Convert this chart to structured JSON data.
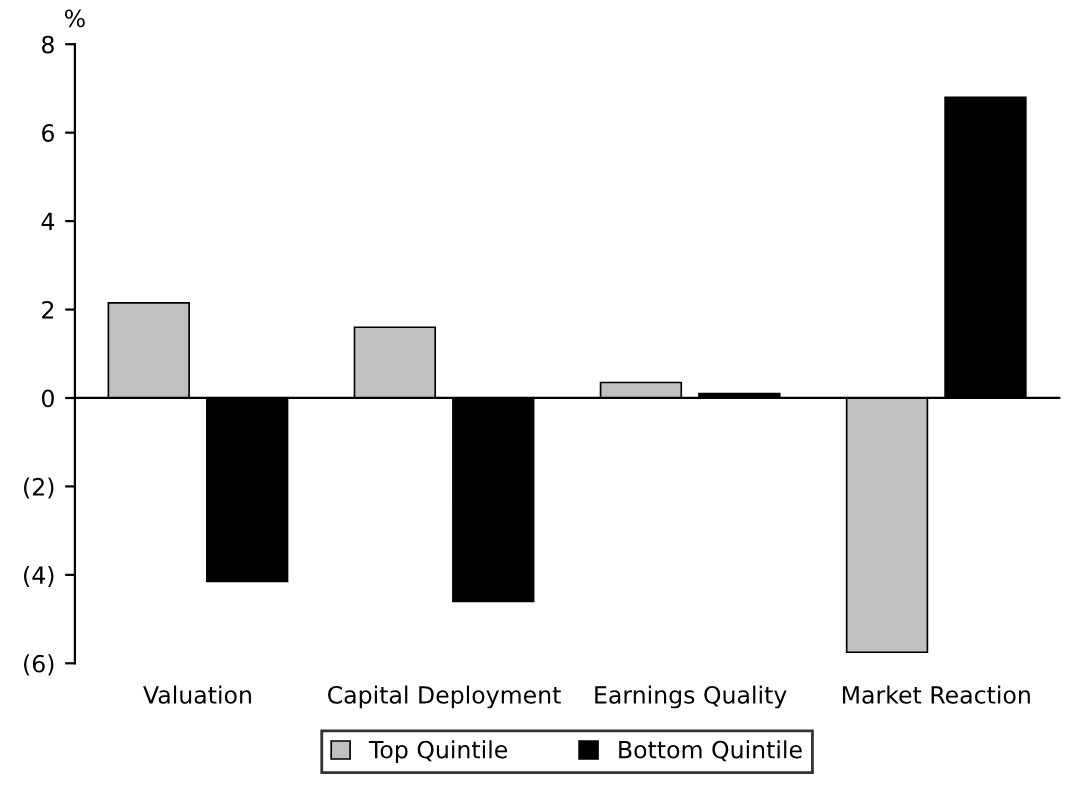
{
  "chart_data": {
    "type": "bar",
    "ylabel": "%",
    "categories": [
      "Valuation",
      "Capital Deployment",
      "Earnings Quality",
      "Market Reaction"
    ],
    "series": [
      {
        "name": "Top Quintile",
        "color": "#c0c0c0",
        "values": [
          2.15,
          1.6,
          0.35,
          -5.75
        ]
      },
      {
        "name": "Bottom Quintile",
        "color": "#000000",
        "values": [
          -4.15,
          -4.6,
          0.1,
          6.8
        ]
      }
    ],
    "ylim": [
      -6,
      8
    ],
    "yticks": [
      {
        "value": -6,
        "label": "(6)"
      },
      {
        "value": -4,
        "label": "(4)"
      },
      {
        "value": -2,
        "label": "(2)"
      },
      0,
      2,
      4,
      6,
      8
    ],
    "legend": "bottom"
  }
}
